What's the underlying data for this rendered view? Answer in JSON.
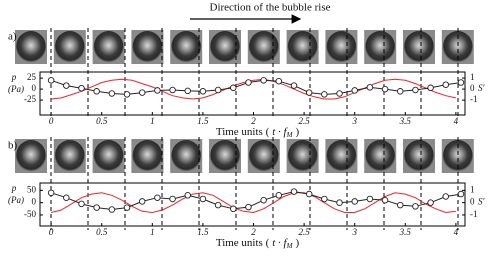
{
  "annotation": "Direction of the bubble rise",
  "chart_data": [
    {
      "type": "line",
      "panel": "a)",
      "ylabel": "p",
      "ylabel_unit": "(Pa)",
      "y2label": "S′",
      "xlabel": "Time units (",
      "xlabel_var": "t · f",
      "xlabel_sub": "M",
      "xlabel_end": ")",
      "xlim": [
        -0.11,
        4.09
      ],
      "xticks": [
        0,
        0.5,
        1,
        1.5,
        2,
        2.5,
        3,
        3.5,
        4
      ],
      "ylim": [
        -59,
        39
      ],
      "yticks": [
        -25,
        0,
        25
      ],
      "y2lim": [
        -2.35,
        1.55
      ],
      "y2ticks": [
        -1,
        0,
        1
      ],
      "series": [
        {
          "color": "#e8262a",
          "axis": "y2",
          "x": [
            0,
            0.1,
            0.2,
            0.3,
            0.4,
            0.5,
            0.6,
            0.7,
            0.8,
            0.9,
            1,
            1.1,
            1.2,
            1.3,
            1.4,
            1.5,
            1.6,
            1.7,
            1.8,
            1.9,
            2,
            2.1,
            2.2,
            2.3,
            2.4,
            2.5,
            2.6,
            2.7,
            2.8,
            2.9,
            3,
            3.1,
            3.2,
            3.3,
            3.4,
            3.5,
            3.6,
            3.7,
            3.8,
            3.9,
            4
          ],
          "values": [
            -0.9,
            -0.8,
            -0.5,
            -0.2,
            0.2,
            0.6,
            0.8,
            0.9,
            0.8,
            0.5,
            0.2,
            -0.2,
            -0.6,
            -0.8,
            -0.9,
            -0.8,
            -0.5,
            -0.1,
            0.3,
            0.6,
            0.8,
            0.9,
            0.7,
            0.4,
            0,
            -0.4,
            -0.7,
            -0.9,
            -0.9,
            -0.7,
            -0.3,
            0.1,
            0.5,
            0.8,
            0.9,
            0.8,
            0.5,
            0.1,
            -0.3,
            -0.6,
            -0.8
          ]
        },
        {
          "color": "#222222",
          "markers": true,
          "x": [
            0,
            0.15,
            0.3,
            0.45,
            0.6,
            0.75,
            0.9,
            1.05,
            1.2,
            1.35,
            1.5,
            1.65,
            1.8,
            1.95,
            2.1,
            2.25,
            2.4,
            2.55,
            2.7,
            2.85,
            3,
            3.15,
            3.3,
            3.45,
            3.6,
            3.75,
            3.9,
            4.05
          ],
          "values": [
            20,
            8,
            2,
            -5,
            -10,
            -12,
            -8,
            -3,
            -2,
            -4,
            -5,
            -2,
            3,
            15,
            20,
            18,
            8,
            -8,
            -12,
            -10,
            -3,
            4,
            0,
            -5,
            -2,
            3,
            10,
            15
          ]
        }
      ]
    },
    {
      "type": "line",
      "panel": "b)",
      "ylabel": "p",
      "ylabel_unit": "(Pa)",
      "y2label": "S′",
      "xlabel": "Time units (",
      "xlabel_var": "t · f",
      "xlabel_sub": "M",
      "xlabel_end": ")",
      "xlim": [
        -0.11,
        4.09
      ],
      "xticks": [
        0,
        0.5,
        1,
        1.5,
        2,
        2.5,
        3,
        3.5,
        4
      ],
      "ylim": [
        -95,
        80
      ],
      "yticks": [
        -50,
        0,
        50
      ],
      "y2lim": [
        -1.9,
        1.6
      ],
      "y2ticks": [
        -1,
        0,
        1
      ],
      "series": [
        {
          "color": "#e8262a",
          "axis": "y2",
          "x": [
            0,
            0.1,
            0.2,
            0.3,
            0.4,
            0.5,
            0.6,
            0.7,
            0.8,
            0.9,
            1,
            1.1,
            1.2,
            1.3,
            1.4,
            1.5,
            1.6,
            1.7,
            1.8,
            1.9,
            2,
            2.1,
            2.2,
            2.3,
            2.4,
            2.5,
            2.6,
            2.7,
            2.8,
            2.9,
            3,
            3.1,
            3.2,
            3.3,
            3.4,
            3.5,
            3.6,
            3.7,
            3.8,
            3.9,
            4
          ],
          "values": [
            -0.8,
            -0.6,
            -0.1,
            0.4,
            0.7,
            0.8,
            0.6,
            0.2,
            -0.3,
            -0.7,
            -0.8,
            -0.6,
            -0.2,
            0.3,
            0.7,
            0.8,
            0.6,
            0.1,
            -0.4,
            -0.7,
            -0.8,
            -0.5,
            0,
            0.5,
            0.8,
            0.8,
            0.5,
            0,
            -0.5,
            -0.8,
            -0.8,
            -0.5,
            0,
            0.5,
            0.8,
            0.7,
            0.4,
            -0.1,
            -0.5,
            -0.8,
            -0.7
          ]
        },
        {
          "color": "#222222",
          "markers": true,
          "x": [
            0,
            0.15,
            0.3,
            0.45,
            0.6,
            0.75,
            0.9,
            1.05,
            1.2,
            1.35,
            1.5,
            1.65,
            1.8,
            1.95,
            2.1,
            2.25,
            2.4,
            2.55,
            2.7,
            2.85,
            3,
            3.15,
            3.3,
            3.45,
            3.6,
            3.75,
            3.9,
            4.05
          ],
          "values": [
            40,
            20,
            -5,
            -20,
            -28,
            -20,
            5,
            20,
            15,
            30,
            15,
            -10,
            -25,
            -18,
            10,
            30,
            45,
            35,
            15,
            0,
            5,
            15,
            10,
            -10,
            -15,
            0,
            25,
            35
          ]
        }
      ]
    }
  ]
}
